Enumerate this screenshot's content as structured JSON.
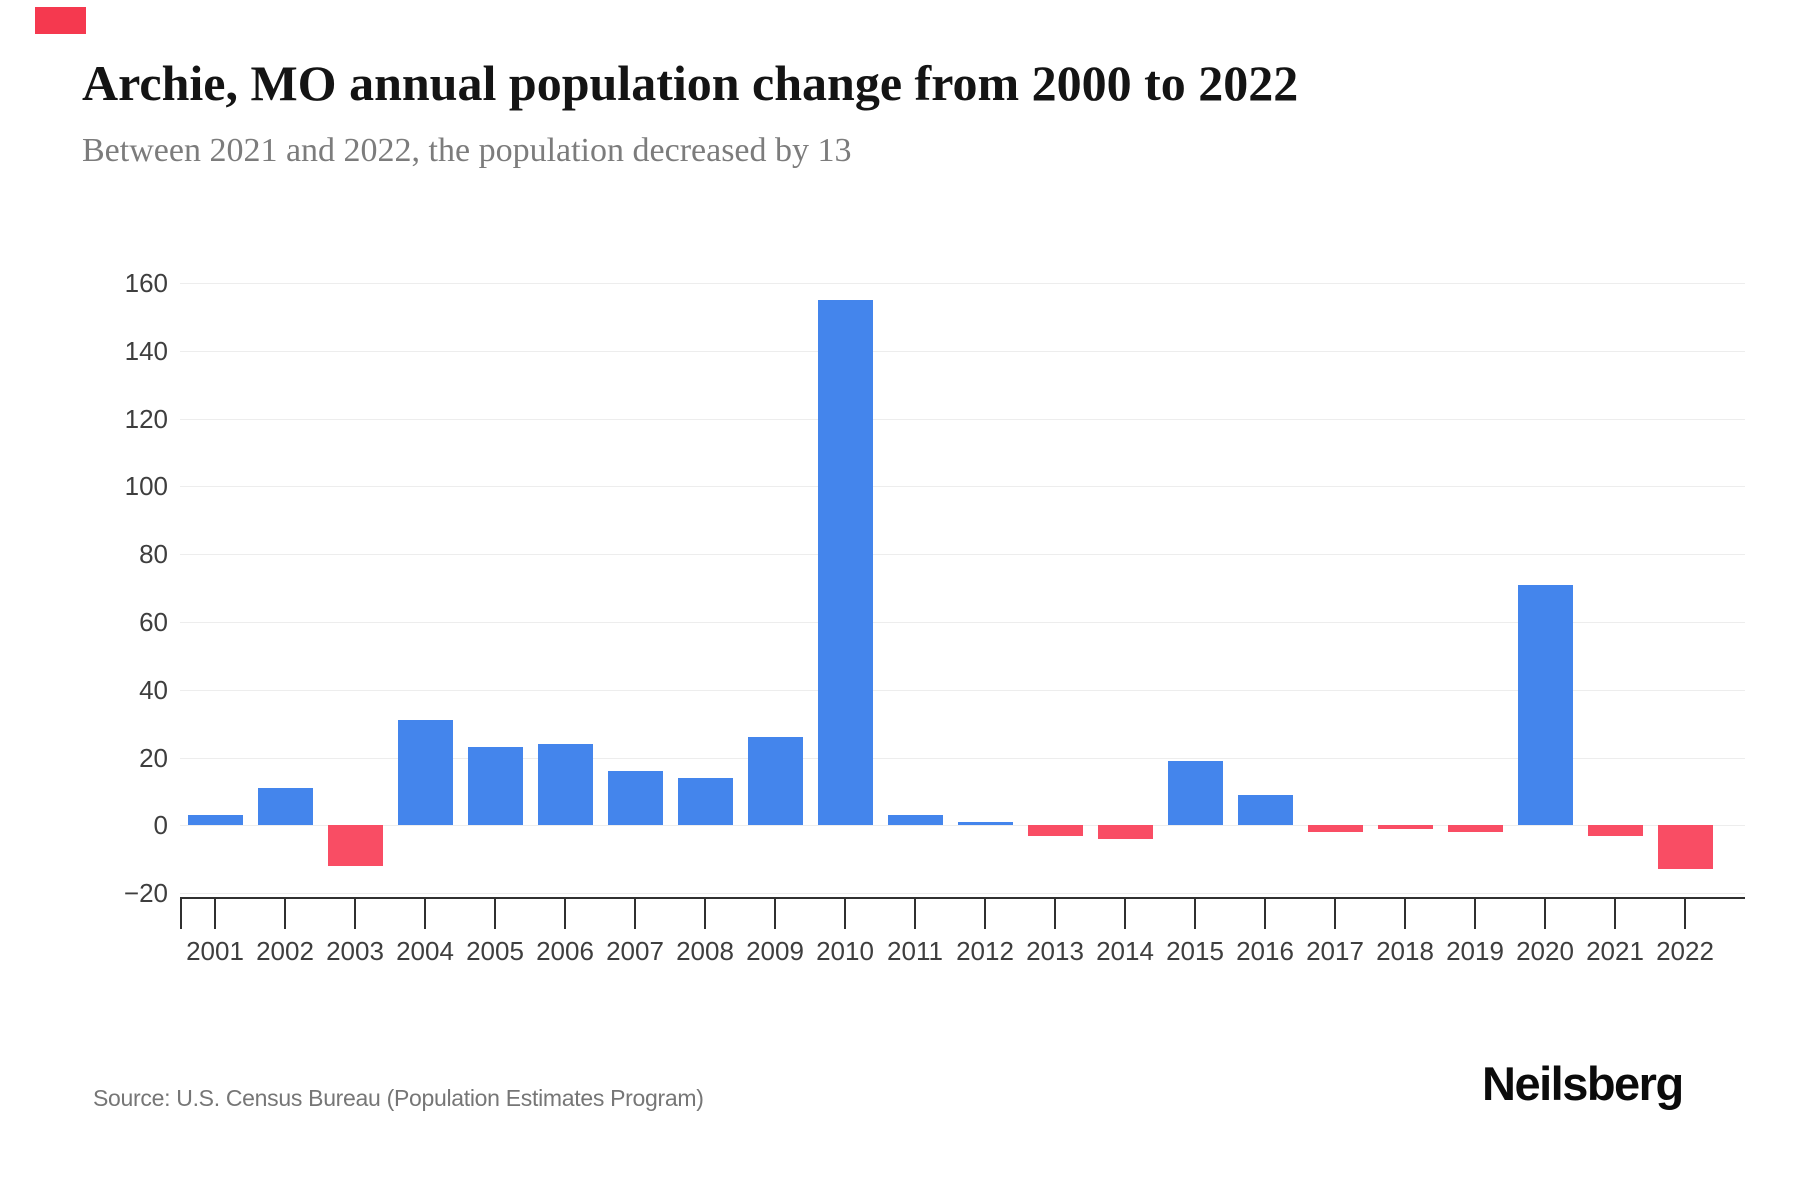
{
  "header": {
    "title": "Archie, MO annual population change from 2000 to 2022",
    "subtitle": "Between 2021 and 2022, the population decreased by 13",
    "brand_mark_color": "#f5394f"
  },
  "chart_data": {
    "type": "bar",
    "title": "Archie, MO annual population change from 2000 to 2022",
    "subtitle": "Between 2021 and 2022, the population decreased by 13",
    "categories": [
      "2001",
      "2002",
      "2003",
      "2004",
      "2005",
      "2006",
      "2007",
      "2008",
      "2009",
      "2010",
      "2011",
      "2012",
      "2013",
      "2014",
      "2015",
      "2016",
      "2017",
      "2018",
      "2019",
      "2020",
      "2021",
      "2022"
    ],
    "values": [
      3,
      11,
      -12,
      31,
      23,
      24,
      16,
      14,
      26,
      155,
      3,
      1,
      -3,
      -4,
      19,
      9,
      -2,
      -1,
      -2,
      71,
      -3,
      -13
    ],
    "xlabel": "",
    "ylabel": "",
    "ylim": [
      -20,
      160
    ],
    "ytick_interval": 20,
    "ytick_labels": [
      "160",
      "140",
      "120",
      "100",
      "80",
      "60",
      "40",
      "20",
      "0",
      "−20"
    ],
    "grid": true,
    "legend": false,
    "positive_color": "#4485ec",
    "negative_color": "#f94d64",
    "gridline_color": "#ededed",
    "axis_color": "#303030",
    "tick_label_color": "#3e3e3e"
  },
  "footer": {
    "source": "Source: U.S. Census Bureau (Population Estimates Program)",
    "brand": "Neilsberg"
  }
}
